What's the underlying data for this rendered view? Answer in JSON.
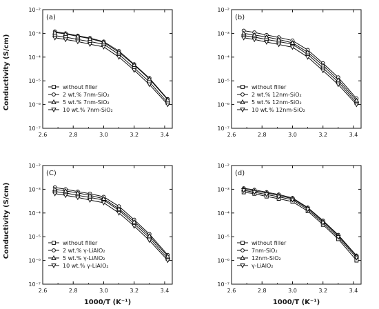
{
  "figure": {
    "ylabel_top": "Conductivity (S/cm)",
    "ylabel_bottom": "Conductivity (S/cm)",
    "xlabel_left": "1000/T (K⁻¹)",
    "xlabel_right": "1000/T (K⁻¹)"
  },
  "chart_data": [
    {
      "type": "line",
      "panel": "(a)",
      "xlim": [
        2.6,
        3.45
      ],
      "ylim": [
        1e-07,
        0.01
      ],
      "yscale": "log",
      "xticks": [
        "2.6",
        "2.8",
        "3.0",
        "3.2",
        "3.4"
      ],
      "yticks": [
        "10⁻⁷",
        "10⁻⁶",
        "10⁻⁵",
        "10⁻⁴",
        "10⁻³",
        "10⁻²"
      ],
      "legend_position": "bottom-left",
      "x": [
        2.68,
        2.75,
        2.83,
        2.91,
        3.0,
        3.1,
        3.2,
        3.3,
        3.42
      ],
      "series": [
        {
          "name": "without filler",
          "marker": "square",
          "values": [
            0.0008,
            0.0007,
            0.00055,
            0.00045,
            0.00035,
            0.00013,
            3.5e-05,
            9e-06,
            1.2e-06
          ]
        },
        {
          "name": "2 wt.% 7nm-SiO₂",
          "marker": "circle",
          "values": [
            0.0012,
            0.001,
            0.0008,
            0.00063,
            0.00045,
            0.00018,
            5e-05,
            1.3e-05,
            1.7e-06
          ]
        },
        {
          "name": "5 wt.% 7nm-SiO₂",
          "marker": "triangle-up",
          "values": [
            0.0011,
            0.00095,
            0.00075,
            0.0006,
            0.00042,
            0.00016,
            4.7e-05,
            1.2e-05,
            1.6e-06
          ]
        },
        {
          "name": "10 wt.% 7nm-SiO₂",
          "marker": "triangle-down",
          "values": [
            0.00065,
            0.00055,
            0.00045,
            0.00035,
            0.00027,
            0.0001,
            2.8e-05,
            7e-06,
            1e-06
          ]
        }
      ]
    },
    {
      "type": "line",
      "panel": "(b)",
      "xlim": [
        2.6,
        3.45
      ],
      "ylim": [
        1e-07,
        0.01
      ],
      "yscale": "log",
      "xticks": [
        "2.6",
        "2.8",
        "3.0",
        "3.2",
        "3.4"
      ],
      "yticks": [
        "10⁻⁷",
        "10⁻⁶",
        "10⁻⁵",
        "10⁻⁴",
        "10⁻³",
        "10⁻²"
      ],
      "legend_position": "bottom-left",
      "x": [
        2.68,
        2.75,
        2.83,
        2.91,
        3.0,
        3.1,
        3.2,
        3.3,
        3.42
      ],
      "series": [
        {
          "name": "without filler",
          "marker": "square",
          "values": [
            0.0008,
            0.0007,
            0.00055,
            0.00045,
            0.00035,
            0.00013,
            3.5e-05,
            9e-06,
            1.2e-06
          ]
        },
        {
          "name": "2 wt.% 12nm-SiO₂",
          "marker": "circle",
          "values": [
            0.0013,
            0.0011,
            0.00085,
            0.00068,
            0.0005,
            0.0002,
            5.5e-05,
            1.4e-05,
            1.8e-06
          ]
        },
        {
          "name": "5 wt.% 12nm-SiO₂",
          "marker": "triangle-up",
          "values": [
            0.001,
            0.00085,
            0.0007,
            0.00055,
            0.0004,
            0.00016,
            4.5e-05,
            1.1e-05,
            1.5e-06
          ]
        },
        {
          "name": "10 wt.% 12nm-SiO₂",
          "marker": "triangle-down",
          "values": [
            0.00065,
            0.00055,
            0.00043,
            0.00034,
            0.00026,
            0.0001,
            2.7e-05,
            7e-06,
            1e-06
          ]
        }
      ]
    },
    {
      "type": "line",
      "panel": "(C)",
      "xlim": [
        2.6,
        3.45
      ],
      "ylim": [
        1e-07,
        0.01
      ],
      "yscale": "log",
      "xticks": [
        "2.6",
        "2.8",
        "3.0",
        "3.2",
        "3.4"
      ],
      "yticks": [
        "10⁻⁷",
        "10⁻⁶",
        "10⁻⁵",
        "10⁻⁴",
        "10⁻³",
        "10⁻²"
      ],
      "legend_position": "bottom-left",
      "x": [
        2.68,
        2.75,
        2.83,
        2.91,
        3.0,
        3.1,
        3.2,
        3.3,
        3.42
      ],
      "series": [
        {
          "name": "without filler",
          "marker": "square",
          "values": [
            0.0008,
            0.0007,
            0.00055,
            0.00045,
            0.00035,
            0.00013,
            3.5e-05,
            9e-06,
            1.2e-06
          ]
        },
        {
          "name": "2 wt.% γ-LiAlO₂",
          "marker": "circle",
          "values": [
            0.0012,
            0.001,
            0.0008,
            0.00065,
            0.00048,
            0.00019,
            5.2e-05,
            1.3e-05,
            1.7e-06
          ]
        },
        {
          "name": "5 wt.% γ-LiAlO₂",
          "marker": "triangle-up",
          "values": [
            0.001,
            0.00085,
            0.0007,
            0.00055,
            0.0004,
            0.00015,
            4.3e-05,
            1.1e-05,
            1.5e-06
          ]
        },
        {
          "name": "10 wt.% γ-LiAlO₂",
          "marker": "triangle-down",
          "values": [
            0.00065,
            0.00055,
            0.00045,
            0.00035,
            0.00027,
            0.0001,
            2.8e-05,
            7e-06,
            1e-06
          ]
        }
      ]
    },
    {
      "type": "line",
      "panel": "(d)",
      "xlim": [
        2.6,
        3.45
      ],
      "ylim": [
        1e-07,
        0.01
      ],
      "yscale": "log",
      "xticks": [
        "2.6",
        "2.8",
        "3.0",
        "3.2",
        "3.4"
      ],
      "yticks": [
        "10⁻⁷",
        "10⁻⁶",
        "10⁻⁵",
        "10⁻⁴",
        "10⁻³",
        "10⁻²"
      ],
      "legend_position": "bottom-left",
      "x": [
        2.68,
        2.75,
        2.83,
        2.91,
        3.0,
        3.1,
        3.2,
        3.3,
        3.42
      ],
      "series": [
        {
          "name": "without filler",
          "marker": "square",
          "values": [
            0.00075,
            0.00065,
            0.0005,
            0.0004,
            0.0003,
            0.00012,
            3.2e-05,
            8e-06,
            1e-06
          ]
        },
        {
          "name": "7nm-SiO₂",
          "marker": "circle",
          "values": [
            0.0011,
            0.00095,
            0.00075,
            0.0006,
            0.00043,
            0.00017,
            4.8e-05,
            1.2e-05,
            1.6e-06
          ]
        },
        {
          "name": "12nm-SiO₂",
          "marker": "triangle-up",
          "values": [
            0.001,
            0.00085,
            0.0007,
            0.00055,
            0.0004,
            0.00016,
            4.4e-05,
            1.1e-05,
            1.5e-06
          ]
        },
        {
          "name": "γ-LiAlO₂",
          "marker": "triangle-down",
          "values": [
            0.0009,
            0.00075,
            0.0006,
            0.00048,
            0.00036,
            0.00014,
            3.8e-05,
            9.5e-06,
            1.3e-06
          ]
        }
      ]
    }
  ]
}
